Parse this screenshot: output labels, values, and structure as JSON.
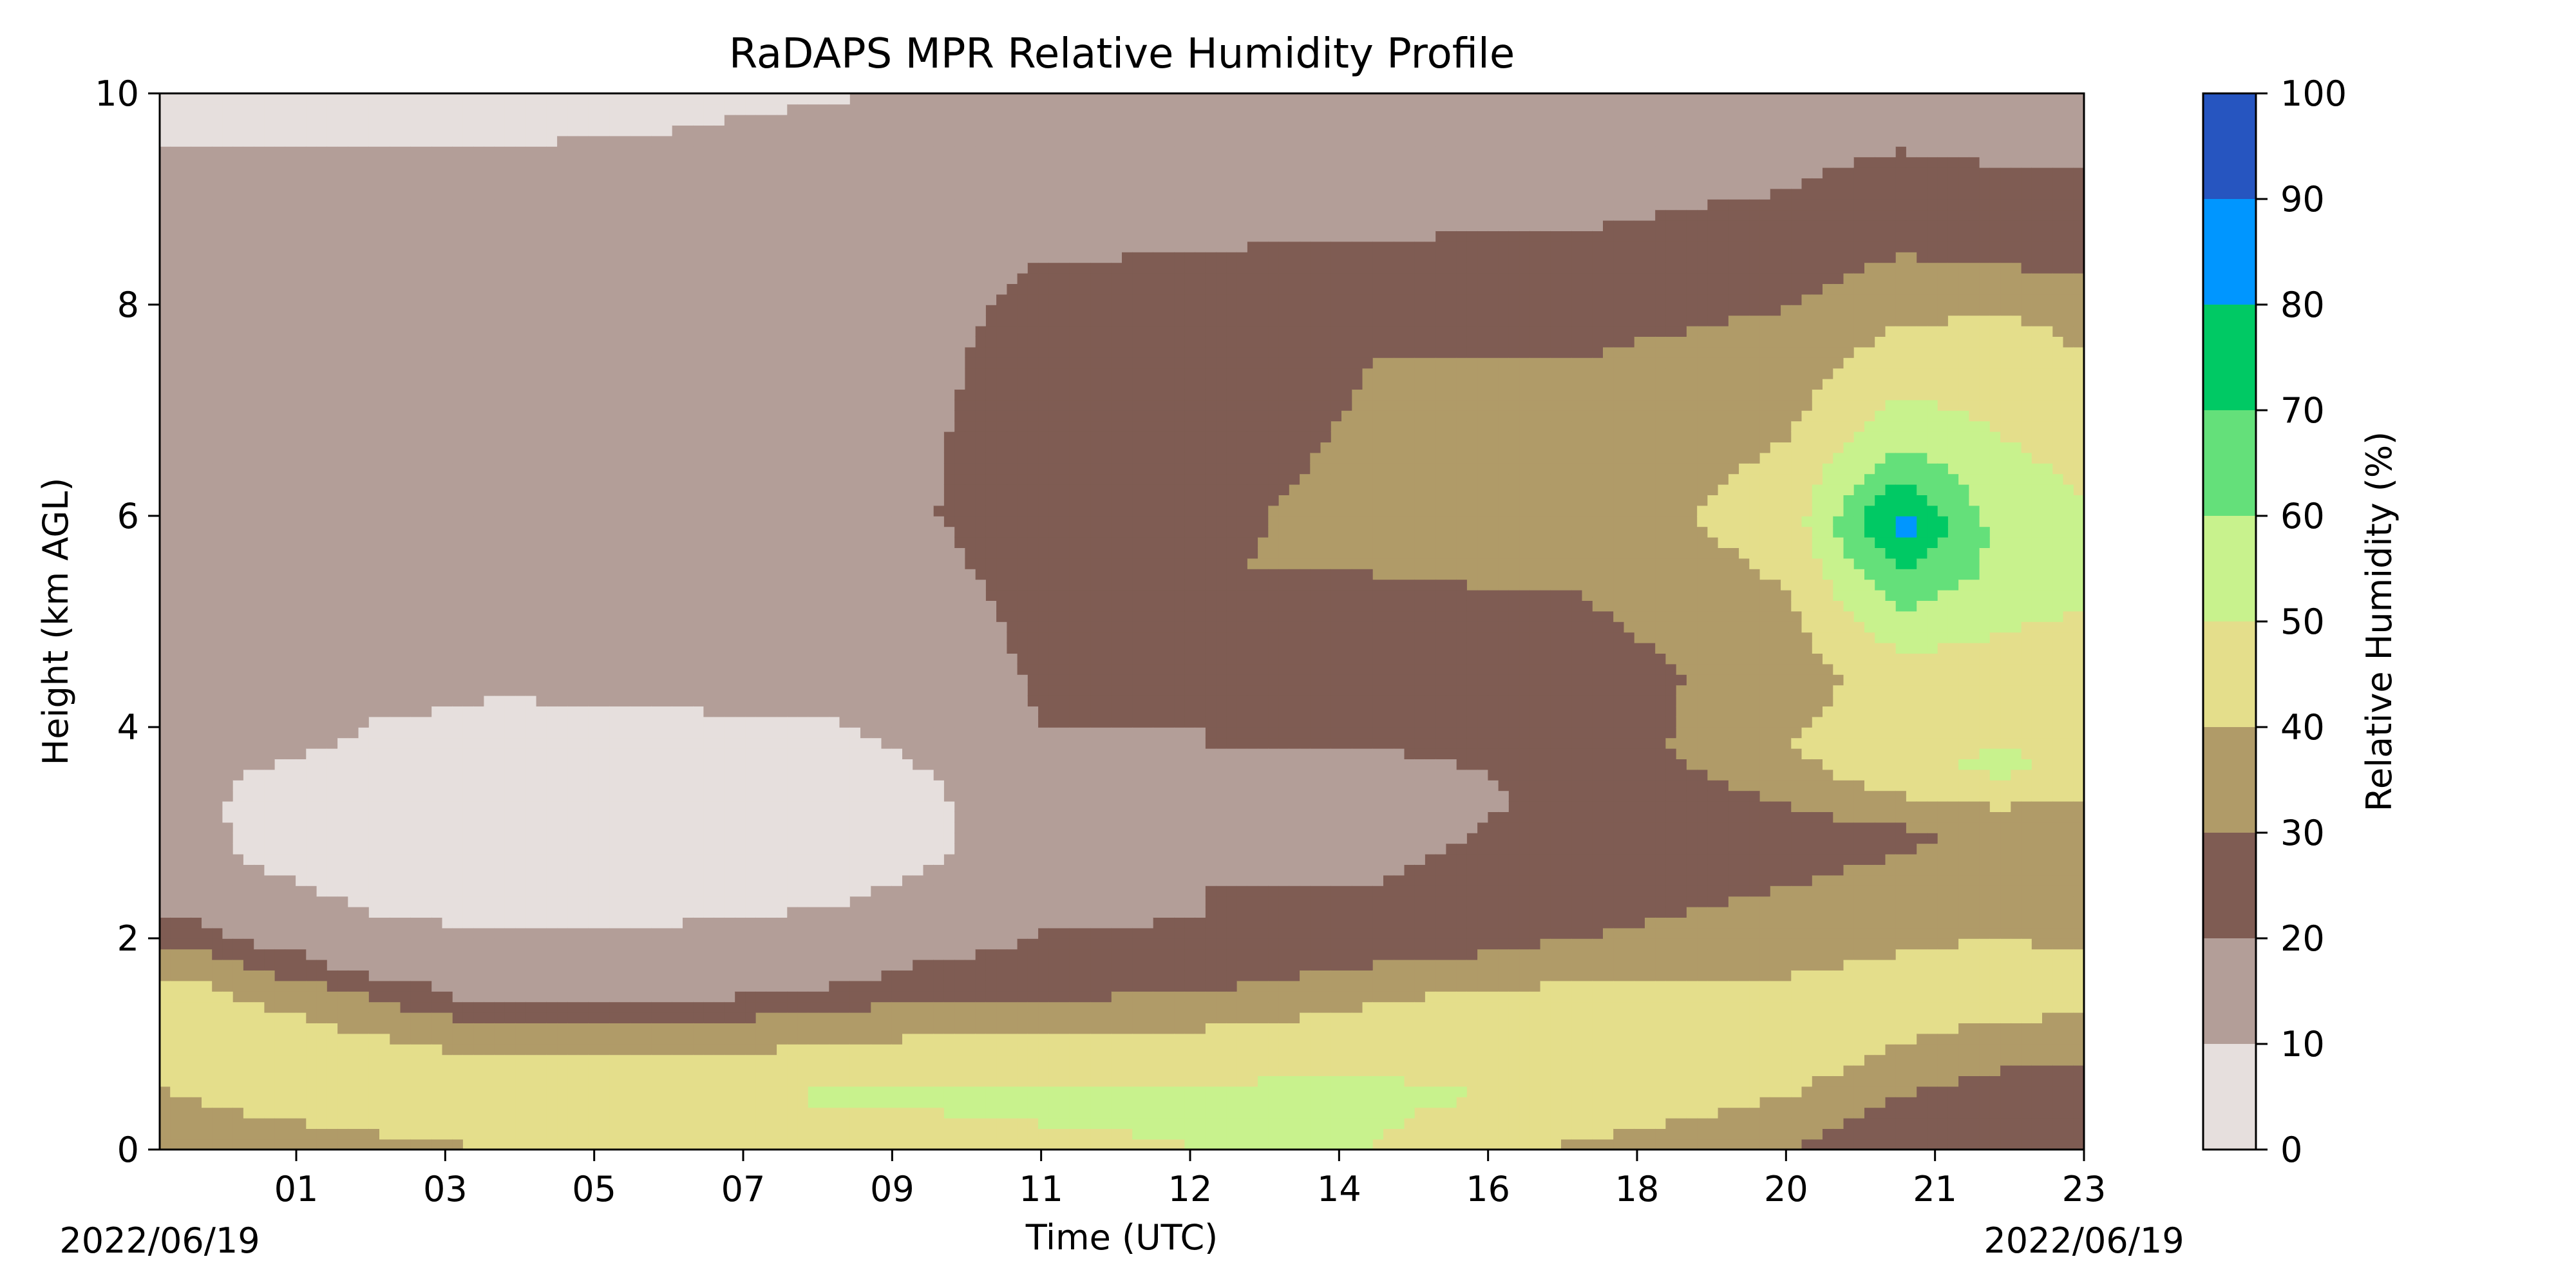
{
  "chart_data": {
    "type": "heatmap",
    "title": "RaDAPS MPR Relative Humidity Profile",
    "xlabel": "Time (UTC)",
    "ylabel": "Height (km AGL)",
    "x_ticks": [
      "01",
      "03",
      "05",
      "07",
      "09",
      "11",
      "12",
      "14",
      "16",
      "18",
      "20",
      "21",
      "23"
    ],
    "y_ticks": [
      "0",
      "2",
      "4",
      "6",
      "8",
      "10"
    ],
    "ylim": [
      0,
      10
    ],
    "date_left": "2022/06/19",
    "date_right": "2022/06/19",
    "colorbar": {
      "label": "Relative Humidity (%)",
      "ticks": [
        "0",
        "10",
        "20",
        "30",
        "40",
        "50",
        "60",
        "70",
        "80",
        "90",
        "100"
      ],
      "levels": [
        0,
        10,
        20,
        30,
        40,
        50,
        60,
        70,
        80,
        90,
        100
      ],
      "colors": [
        "#e6dfdd",
        "#b39e98",
        "#7f5c53",
        "#b09b68",
        "#e4de8b",
        "#c8f28d",
        "#64e07a",
        "#00c964",
        "#0096ff",
        "#2655c0"
      ]
    },
    "x_range": [
      "2022/06/19 00:00",
      "2022/06/19 23:00"
    ],
    "rh_columns": [
      {
        "x": 0.0,
        "z": [
          0.0,
          0.6,
          1.2,
          1.6,
          1.9,
          2.2,
          4.0,
          8.6,
          10.0
        ],
        "r": [
          32,
          40,
          50,
          40,
          30,
          20,
          20,
          20,
          5
        ]
      },
      {
        "x": 0.5,
        "z": [
          0.0,
          0.6,
          1.2,
          1.6,
          1.9,
          2.1,
          3.9,
          8.6,
          10.0
        ],
        "r": [
          35,
          42,
          50,
          40,
          30,
          20,
          13,
          18,
          5
        ]
      },
      {
        "x": 1.0,
        "z": [
          0.0,
          0.6,
          1.2,
          1.5,
          1.8,
          2.0,
          3.2,
          4.2,
          8.6,
          10.0
        ],
        "r": [
          36,
          43,
          45,
          38,
          28,
          18,
          5,
          18,
          18,
          5
        ]
      },
      {
        "x": 2.5,
        "z": [
          0.0,
          0.5,
          1.0,
          1.3,
          1.6,
          1.7,
          3.0,
          4.8,
          8.6,
          10.0
        ],
        "r": [
          38,
          44,
          42,
          35,
          25,
          15,
          3,
          15,
          18,
          5
        ]
      },
      {
        "x": 4.0,
        "z": [
          0.0,
          0.5,
          0.9,
          1.1,
          1.3,
          1.4,
          3.0,
          5.2,
          8.7,
          10.0
        ],
        "r": [
          40,
          45,
          40,
          33,
          25,
          15,
          3,
          15,
          18,
          5
        ]
      },
      {
        "x": 6.0,
        "z": [
          0.0,
          0.5,
          0.9,
          1.1,
          1.3,
          1.5,
          3.0,
          5.0,
          9.0,
          10.0
        ],
        "r": [
          40,
          45,
          40,
          33,
          25,
          15,
          3,
          15,
          18,
          5
        ]
      },
      {
        "x": 8.0,
        "z": [
          0.0,
          0.5,
          0.9,
          1.2,
          1.4,
          1.7,
          3.0,
          5.0,
          9.5,
          10.0
        ],
        "r": [
          42,
          52,
          42,
          35,
          25,
          15,
          4,
          15,
          18,
          8
        ]
      },
      {
        "x": 9.3,
        "z": [
          0.0,
          0.5,
          1.0,
          1.3,
          1.6,
          2.0,
          3.0,
          6.0,
          9.7,
          10.0
        ],
        "r": [
          45,
          52,
          42,
          35,
          25,
          15,
          8,
          20,
          18,
          14
        ]
      },
      {
        "x": 10.5,
        "z": [
          0.0,
          0.5,
          1.0,
          1.3,
          1.6,
          2.5,
          4.0,
          6.0,
          8.4,
          10.0
        ],
        "r": [
          48,
          52,
          42,
          33,
          25,
          15,
          20,
          25,
          20,
          15
        ]
      },
      {
        "x": 12.5,
        "z": [
          0.0,
          0.5,
          1.0,
          1.3,
          1.7,
          2.2,
          4.0,
          5.5,
          8.5,
          10.0
        ],
        "r": [
          50,
          52,
          45,
          35,
          25,
          20,
          20,
          30,
          20,
          15
        ]
      },
      {
        "x": 14.5,
        "z": [
          0.0,
          0.5,
          1.1,
          1.5,
          1.9,
          2.5,
          3.3,
          4.0,
          6.0,
          7.5,
          8.6,
          10.0
        ],
        "r": [
          50,
          52,
          45,
          38,
          25,
          20,
          15,
          22,
          33,
          30,
          20,
          15
        ]
      },
      {
        "x": 17.0,
        "z": [
          0.0,
          0.5,
          1.1,
          1.5,
          2.0,
          2.5,
          3.5,
          4.5,
          6.0,
          7.5,
          8.7,
          10.0
        ],
        "r": [
          38,
          48,
          50,
          42,
          30,
          25,
          22,
          25,
          35,
          30,
          20,
          15
        ]
      },
      {
        "x": 19.5,
        "z": [
          0.0,
          0.4,
          1.0,
          1.5,
          2.0,
          3.0,
          3.8,
          4.5,
          6.0,
          7.5,
          8.7,
          10.0
        ],
        "r": [
          30,
          38,
          48,
          42,
          35,
          25,
          40,
          35,
          45,
          35,
          22,
          15
        ]
      },
      {
        "x": 20.8,
        "z": [
          0.0,
          0.5,
          1.0,
          1.5,
          2.0,
          3.0,
          3.6,
          4.5,
          5.5,
          5.9,
          6.8,
          7.8,
          8.6,
          10.0
        ],
        "r": [
          20,
          30,
          40,
          45,
          38,
          28,
          48,
          45,
          70,
          85,
          55,
          40,
          28,
          15
        ]
      },
      {
        "x": 22.0,
        "z": [
          0.0,
          0.5,
          1.0,
          1.5,
          2.0,
          3.0,
          3.6,
          4.5,
          5.5,
          6.5,
          7.8,
          8.6,
          10.0
        ],
        "r": [
          20,
          25,
          35,
          48,
          40,
          32,
          52,
          45,
          58,
          52,
          42,
          25,
          15
        ]
      },
      {
        "x": 23.0,
        "z": [
          0.0,
          0.5,
          1.0,
          1.5,
          2.0,
          3.0,
          3.6,
          4.5,
          5.5,
          6.5,
          7.8,
          8.6,
          10.0
        ],
        "r": [
          20,
          25,
          32,
          45,
          38,
          30,
          48,
          42,
          55,
          48,
          38,
          25,
          15
        ]
      }
    ]
  }
}
